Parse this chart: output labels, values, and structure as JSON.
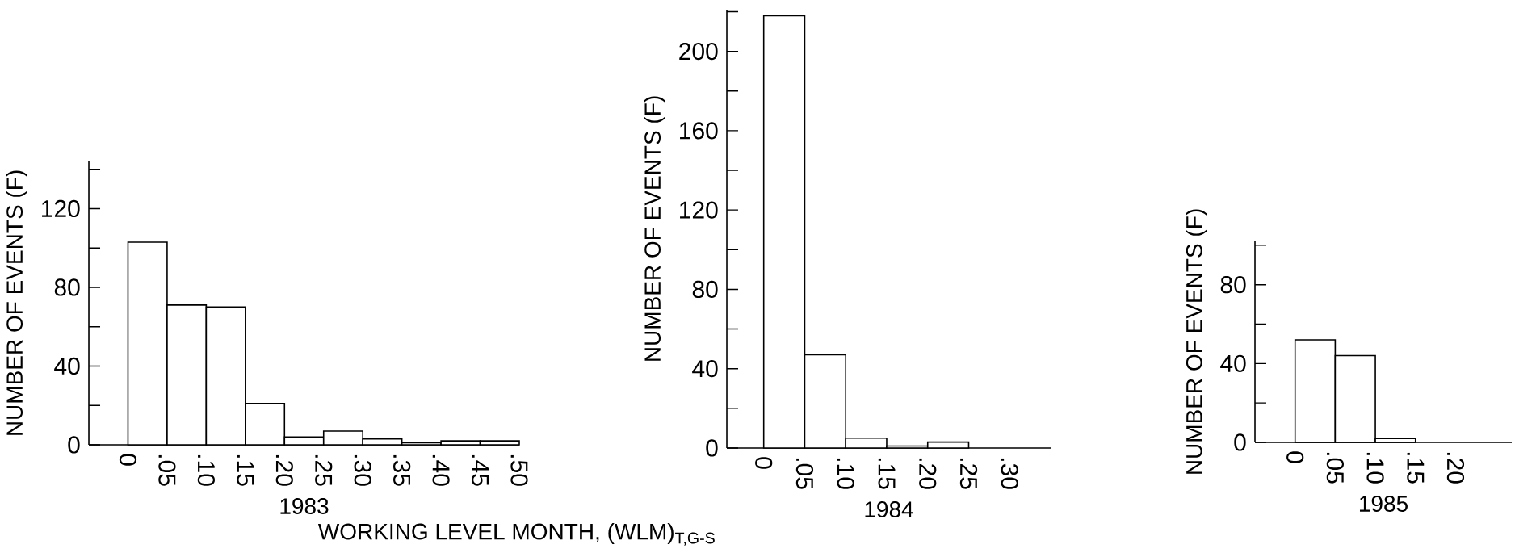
{
  "chart_data": [
    {
      "type": "histogram",
      "xlabel": "1983",
      "ylabel": "NUMBER OF EVENTS (F)",
      "bins": [
        0,
        0.05,
        0.1,
        0.15,
        0.2,
        0.25,
        0.3,
        0.35,
        0.4,
        0.45,
        0.5
      ],
      "values": [
        103,
        71,
        70,
        21,
        4,
        7,
        3,
        1,
        2,
        2
      ],
      "xlim": [
        -0.05,
        0.5
      ],
      "ylim": [
        0,
        144
      ],
      "xticks": [
        0,
        {
          "value": 0.05,
          "label": ".05"
        },
        {
          "value": 0.1,
          "label": ".10"
        },
        {
          "value": 0.15,
          "label": ".15"
        },
        {
          "value": 0.2,
          "label": ".20"
        },
        {
          "value": 0.25,
          "label": ".25"
        },
        {
          "value": 0.3,
          "label": ".30"
        },
        {
          "value": 0.35,
          "label": ".35"
        },
        {
          "value": 0.4,
          "label": ".40"
        },
        {
          "value": 0.45,
          "label": ".45"
        },
        {
          "value": 0.5,
          "label": ".50"
        }
      ],
      "yticks": [
        0,
        {
          "value": 20,
          "label": null
        },
        40,
        {
          "value": 60,
          "label": null
        },
        80,
        {
          "value": 100,
          "label": null
        },
        120,
        {
          "value": 140,
          "label": null
        }
      ]
    },
    {
      "type": "histogram",
      "xlabel": "1984",
      "ylabel": "NUMBER OF EVENTS (F)",
      "annotations": [
        "WORKING LEVEL MONTH, (WLM)$_{T,G-S}$"
      ],
      "bins": [
        0,
        0.05,
        0.1,
        0.15,
        0.2,
        0.25
      ],
      "values": [
        218,
        47,
        5,
        1,
        3
      ],
      "xlim": [
        -0.045,
        0.35
      ],
      "ylim": [
        0,
        221
      ],
      "xticks": [
        0,
        {
          "value": 0.05,
          "label": ".05"
        },
        {
          "value": 0.1,
          "label": ".10"
        },
        {
          "value": 0.15,
          "label": ".15"
        },
        {
          "value": 0.2,
          "label": ".20"
        },
        {
          "value": 0.25,
          "label": ".25"
        },
        {
          "value": 0.3,
          "label": ".30"
        }
      ],
      "yticks": [
        0,
        {
          "value": 20,
          "label": null
        },
        40,
        {
          "value": 60,
          "label": null
        },
        80,
        {
          "value": 100,
          "label": null
        },
        120,
        {
          "value": 140,
          "label": null
        },
        160,
        {
          "value": 180,
          "label": null
        },
        200,
        {
          "value": 220,
          "label": null
        }
      ]
    },
    {
      "type": "histogram",
      "xlabel": "1985",
      "ylabel": "NUMBER OF EVENTS (F)",
      "bins": [
        0,
        0.05,
        0.1,
        0.15
      ],
      "values": [
        52,
        44,
        2
      ],
      "xlim": [
        -0.05,
        0.27
      ],
      "ylim": [
        0,
        102
      ],
      "xticks": [
        0,
        {
          "value": 0.05,
          "label": ".05"
        },
        {
          "value": 0.1,
          "label": ".10"
        },
        {
          "value": 0.15,
          "label": ".15"
        },
        {
          "value": 0.2,
          "label": ".20"
        }
      ],
      "yticks": [
        0,
        {
          "value": 20,
          "label": null
        },
        40,
        {
          "value": 60,
          "label": null
        },
        80,
        {
          "value": 100,
          "label": null
        }
      ]
    }
  ]
}
